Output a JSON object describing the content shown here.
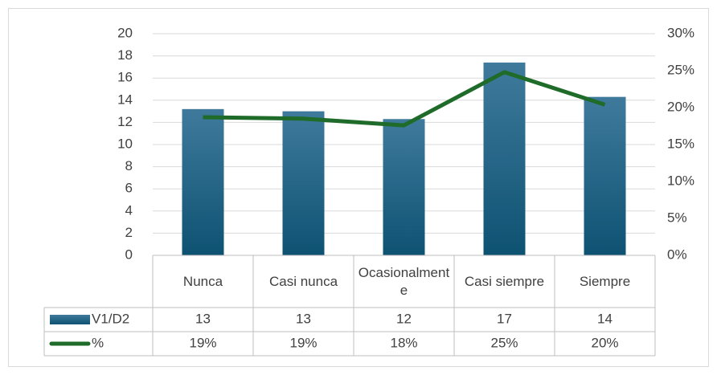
{
  "chart_data": {
    "type": "bar",
    "categories": [
      "Nunca",
      "Casi nunca",
      "Ocasionalmente",
      "Casi siempre",
      "Siempre"
    ],
    "series": [
      {
        "name": "V1/D2",
        "type": "bar",
        "color": "#1f5f85",
        "values": [
          13.2,
          13.0,
          12.3,
          17.4,
          14.3
        ],
        "value_labels": [
          "13",
          "13",
          "12",
          "17",
          "14"
        ]
      },
      {
        "name": "%",
        "type": "line",
        "axis": "y2",
        "color": "#1e6b2a",
        "values": [
          18.7,
          18.5,
          17.6,
          24.8,
          20.4
        ],
        "value_labels": [
          "19%",
          "19%",
          "18%",
          "25%",
          "20%"
        ]
      }
    ],
    "ylim": [
      0,
      20
    ],
    "yticks": [
      0,
      2,
      4,
      6,
      8,
      10,
      12,
      14,
      16,
      18,
      20
    ],
    "y2lim": [
      0,
      30
    ],
    "y2ticks": [
      {
        "value": 0,
        "label": "0%"
      },
      {
        "value": 5,
        "label": "5%"
      },
      {
        "value": 10,
        "label": "10%"
      },
      {
        "value": 15,
        "label": "15%"
      },
      {
        "value": 20,
        "label": "20%"
      },
      {
        "value": 25,
        "label": "25%"
      },
      {
        "value": 30,
        "label": "30%"
      }
    ],
    "grid": true,
    "data_table": true
  }
}
